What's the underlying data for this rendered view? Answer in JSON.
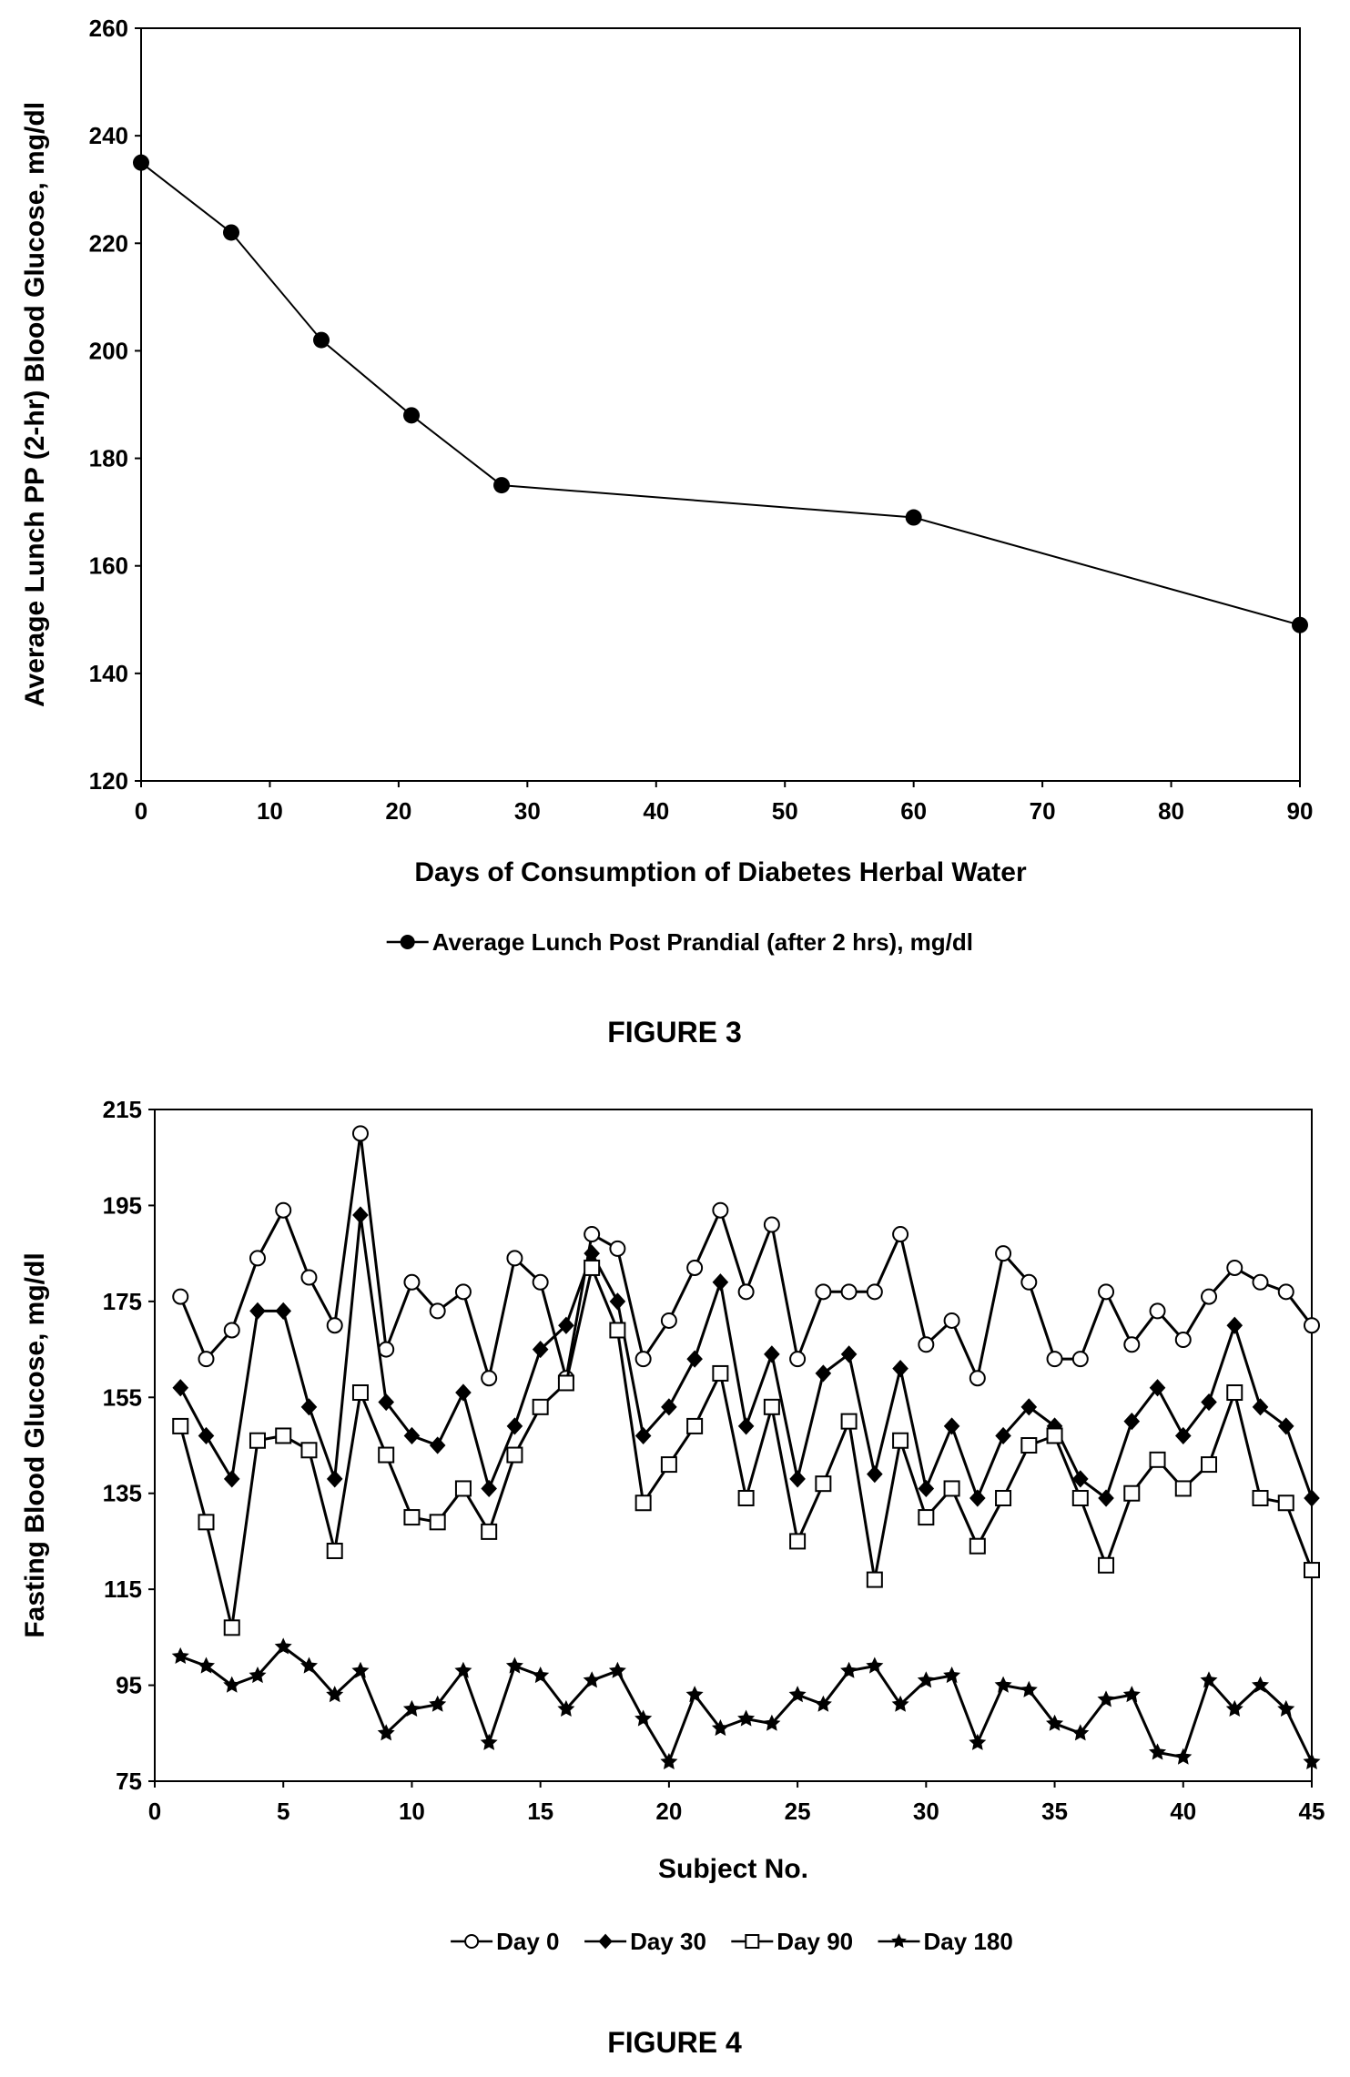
{
  "figures": [
    {
      "caption": "FIGURE 3"
    },
    {
      "caption": "FIGURE 4"
    }
  ],
  "chart_data": [
    {
      "type": "line",
      "title": "",
      "xlabel": "Days of Consumption of Diabetes Herbal Water",
      "ylabel": "Average Lunch PP (2-hr) Blood Glucose, mg/dl",
      "xlim": [
        0,
        90
      ],
      "ylim": [
        120,
        260
      ],
      "xticks": [
        0,
        10,
        20,
        30,
        40,
        50,
        60,
        70,
        80,
        90
      ],
      "yticks": [
        120,
        140,
        160,
        180,
        200,
        220,
        240,
        260
      ],
      "legend_position": "bottom",
      "grid": false,
      "series": [
        {
          "name": "Average Lunch Post Prandial (after 2 hrs), mg/dl",
          "marker": "filled-circle",
          "x": [
            0,
            7,
            14,
            21,
            28,
            60,
            90
          ],
          "y": [
            235,
            222,
            202,
            188,
            175,
            169,
            149
          ]
        }
      ]
    },
    {
      "type": "line",
      "title": "",
      "xlabel": "Subject No.",
      "ylabel": "Fasting Blood Glucose, mg/dl",
      "xlim": [
        0,
        45
      ],
      "ylim": [
        75,
        215
      ],
      "xticks": [
        0,
        5,
        10,
        15,
        20,
        25,
        30,
        35,
        40,
        45
      ],
      "yticks": [
        75,
        95,
        115,
        135,
        155,
        175,
        195,
        215
      ],
      "legend_position": "bottom",
      "grid": false,
      "series": [
        {
          "name": "Day 0",
          "marker": "open-circle",
          "x": [
            1,
            2,
            3,
            4,
            5,
            6,
            7,
            8,
            9,
            10,
            11,
            12,
            13,
            14,
            15,
            16,
            17,
            18,
            19,
            20,
            21,
            22,
            23,
            24,
            25,
            26,
            27,
            28,
            29,
            30,
            31,
            32,
            33,
            34,
            35,
            36,
            37,
            38,
            39,
            40,
            41,
            42,
            43,
            44,
            45
          ],
          "y": [
            176,
            163,
            169,
            184,
            194,
            180,
            170,
            210,
            165,
            179,
            173,
            177,
            159,
            184,
            179,
            159,
            189,
            186,
            163,
            171,
            182,
            194,
            177,
            191,
            163,
            177,
            177,
            177,
            189,
            166,
            171,
            159,
            185,
            179,
            163,
            163,
            177,
            166,
            173,
            167,
            176,
            182,
            179,
            177,
            170
          ]
        },
        {
          "name": "Day 30",
          "marker": "filled-diamond",
          "x": [
            1,
            2,
            3,
            4,
            5,
            6,
            7,
            8,
            9,
            10,
            11,
            12,
            13,
            14,
            15,
            16,
            17,
            18,
            19,
            20,
            21,
            22,
            23,
            24,
            25,
            26,
            27,
            28,
            29,
            30,
            31,
            32,
            33,
            34,
            35,
            36,
            37,
            38,
            39,
            40,
            41,
            42,
            43,
            44,
            45
          ],
          "y": [
            157,
            147,
            138,
            173,
            173,
            153,
            138,
            193,
            154,
            147,
            145,
            156,
            136,
            149,
            165,
            170,
            185,
            175,
            147,
            153,
            163,
            179,
            149,
            164,
            138,
            160,
            164,
            139,
            161,
            136,
            149,
            134,
            147,
            153,
            149,
            138,
            134,
            150,
            157,
            147,
            154,
            170,
            153,
            149,
            134
          ]
        },
        {
          "name": "Day 90",
          "marker": "open-square",
          "x": [
            1,
            2,
            3,
            4,
            5,
            6,
            7,
            8,
            9,
            10,
            11,
            12,
            13,
            14,
            15,
            16,
            17,
            18,
            19,
            20,
            21,
            22,
            23,
            24,
            25,
            26,
            27,
            28,
            29,
            30,
            31,
            32,
            33,
            34,
            35,
            36,
            37,
            38,
            39,
            40,
            41,
            42,
            43,
            44,
            45
          ],
          "y": [
            149,
            129,
            107,
            146,
            147,
            144,
            123,
            156,
            143,
            130,
            129,
            136,
            127,
            143,
            153,
            158,
            182,
            169,
            133,
            141,
            149,
            160,
            134,
            153,
            125,
            137,
            150,
            117,
            146,
            130,
            136,
            124,
            134,
            145,
            147,
            134,
            120,
            135,
            142,
            136,
            141,
            156,
            134,
            133,
            119
          ]
        },
        {
          "name": "Day 180",
          "marker": "filled-star",
          "x": [
            1,
            2,
            3,
            4,
            5,
            6,
            7,
            8,
            9,
            10,
            11,
            12,
            13,
            14,
            15,
            16,
            17,
            18,
            19,
            20,
            21,
            22,
            23,
            24,
            25,
            26,
            27,
            28,
            29,
            30,
            31,
            32,
            33,
            34,
            35,
            36,
            37,
            38,
            39,
            40,
            41,
            42,
            43,
            44,
            45
          ],
          "y": [
            101,
            99,
            95,
            97,
            103,
            99,
            93,
            98,
            85,
            90,
            91,
            98,
            83,
            99,
            97,
            90,
            96,
            98,
            88,
            79,
            93,
            86,
            88,
            87,
            93,
            91,
            98,
            99,
            91,
            96,
            97,
            83,
            95,
            94,
            87,
            85,
            92,
            93,
            81,
            80,
            96,
            90,
            95,
            90,
            79
          ]
        }
      ]
    }
  ]
}
